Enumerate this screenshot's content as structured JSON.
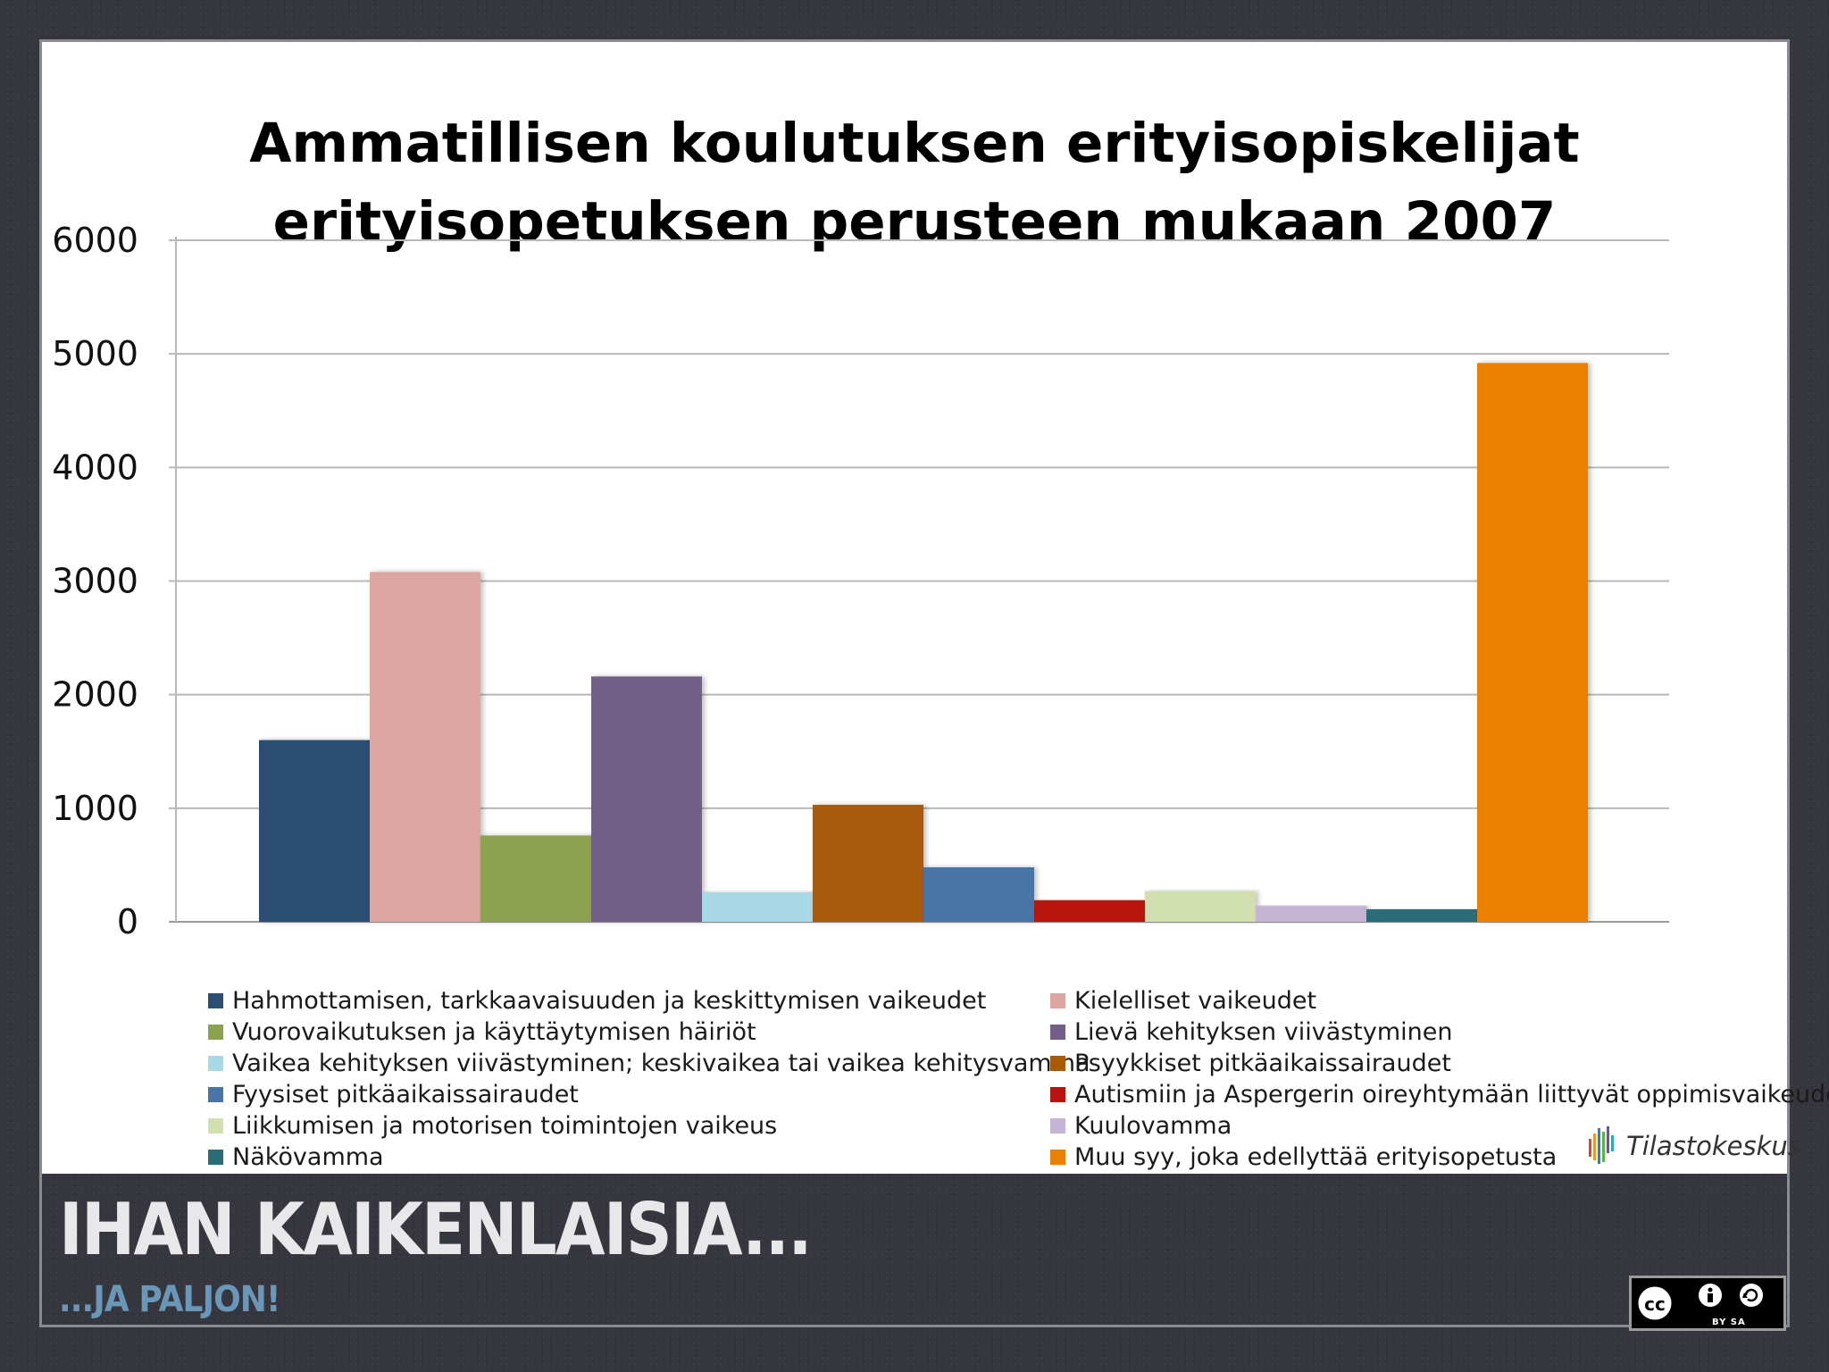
{
  "chart_data": {
    "type": "bar",
    "title": [
      "Ammatillisen koulutuksen erityisopiskelijat",
      "erityisopetuksen perusteen mukaan 2007"
    ],
    "xlabel": "",
    "ylabel": "",
    "ylim": [
      0,
      6000
    ],
    "yticks": [
      "6000",
      "5000",
      "4000",
      "3000",
      "2000",
      "1000",
      "0"
    ],
    "ytick_values": [
      6000,
      5000,
      4000,
      3000,
      2000,
      1000,
      0
    ],
    "grid": true,
    "legend_position": "bottom",
    "series": [
      {
        "name": "Hahmottamisen, tarkkaavaisuuden ja keskittymisen vaikeudet",
        "value": 1600,
        "color": "#2b4f73"
      },
      {
        "name": "Kielelliset vaikeudet",
        "value": 3080,
        "color": "#dea6a0"
      },
      {
        "name": "Vuorovaikutuksen ja käyttäytymisen häiriöt",
        "value": 760,
        "color": "#8da24f"
      },
      {
        "name": "Lievä kehityksen viivästyminen",
        "value": 2160,
        "color": "#736089"
      },
      {
        "name": "Vaikea kehityksen viivästyminen; keskivaikea tai vaikea kehitysvamma",
        "value": 260,
        "color": "#a9d9e7"
      },
      {
        "name": "Psyykkiset pitkäaikaissairaudet",
        "value": 1030,
        "color": "#a85a07"
      },
      {
        "name": "Fyysiset pitkäaikaissairaudet",
        "value": 480,
        "color": "#4675a6"
      },
      {
        "name": "Autismiin ja Aspergerin oireyhtymään liittyvät oppimisvaikeudet",
        "value": 190,
        "color": "#b8140f"
      },
      {
        "name": "Liikkumisen ja motorisen toimintojen vaikeus",
        "value": 270,
        "color": "#d2e0b0"
      },
      {
        "name": "Kuulovamma",
        "value": 140,
        "color": "#c4b5d7"
      },
      {
        "name": "Näkövamma",
        "value": 110,
        "color": "#2a6c78"
      },
      {
        "name": "Muu syy, joka edellyttää erityisopetusta",
        "value": 4920,
        "color": "#ec8004"
      }
    ]
  },
  "logo": {
    "text": "Tilastokeskus"
  },
  "footer": {
    "title": "IHAN KAIKENLAISIA...",
    "subtitle": "...JA PALJON!"
  },
  "license": {
    "text": "BY   SA"
  }
}
